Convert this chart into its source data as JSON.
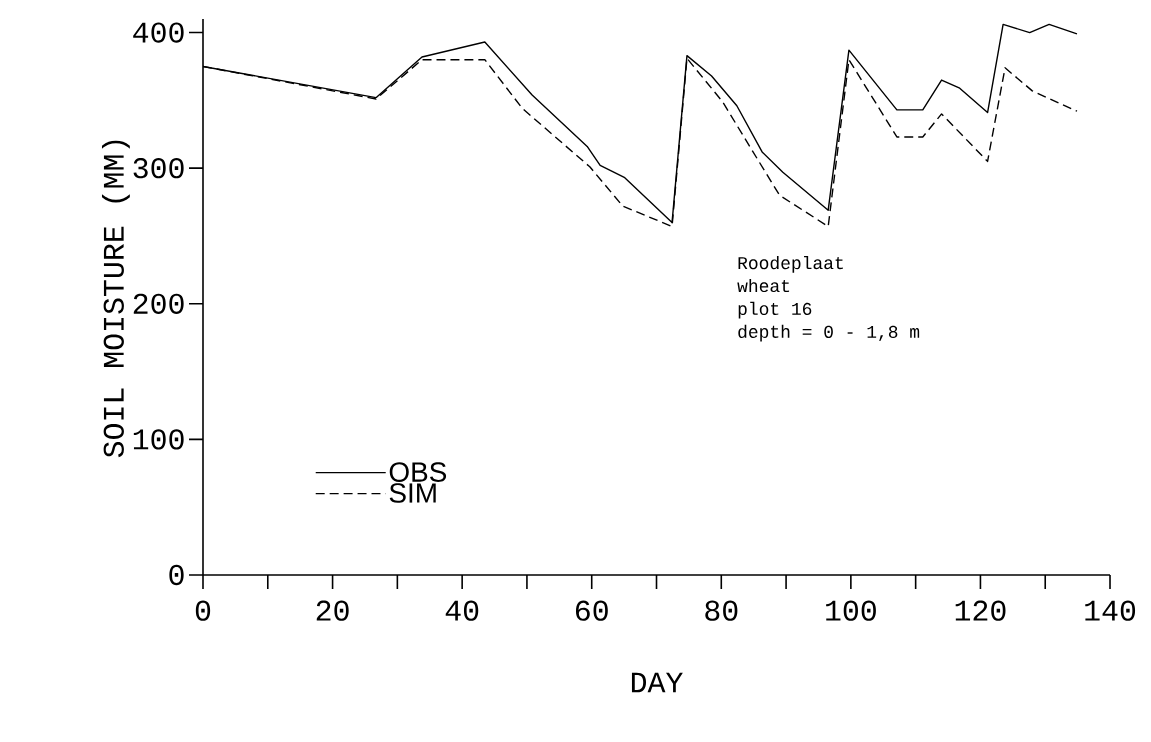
{
  "chart_data": {
    "type": "line",
    "xlabel": "DAY",
    "ylabel": "SOIL MOISTURE (MM)",
    "xlim": [
      0,
      140
    ],
    "ylim": [
      0,
      410
    ],
    "xticks": [
      0,
      {
        "value": 10,
        "label": null
      },
      20,
      {
        "value": 30,
        "label": null
      },
      40,
      {
        "value": 50,
        "label": null
      },
      60,
      {
        "value": 70,
        "label": null
      },
      80,
      {
        "value": 90,
        "label": null
      },
      100,
      {
        "value": 110,
        "label": null
      },
      120,
      {
        "value": 130,
        "label": null
      },
      140
    ],
    "yticks": [
      0,
      100,
      200,
      300,
      400
    ],
    "grid": false,
    "legend": "bottom left",
    "marker": "none",
    "annotations": [
      "Roodeplaat",
      "wheat",
      "plot 16",
      "depth = 0 - 1,8 m"
    ],
    "series": [
      {
        "name": "OBS",
        "color": "#000000",
        "line_style": "solid",
        "x": [
          0,
          26.7,
          33.8,
          43.5,
          50.8,
          59.3,
          61.3,
          65.1,
          72.4,
          74.7,
          78.5,
          82.4,
          86.3,
          89.5,
          96.5,
          99.7,
          107.1,
          111.1,
          114,
          116.8,
          121.1,
          123.5,
          127.6,
          130.6,
          134.9
        ],
        "values": [
          375,
          352,
          382,
          393,
          354,
          316,
          302,
          293,
          260,
          383,
          368,
          346,
          312,
          297,
          269,
          387,
          343,
          343,
          365,
          359,
          341,
          406,
          400,
          406,
          399
        ]
      },
      {
        "name": "SIM",
        "color": "#000000",
        "line_style": "dashed",
        "x": [
          0,
          26.7,
          33.8,
          43.5,
          49.3,
          59.7,
          64.8,
          72.4,
          74.7,
          80.2,
          84.9,
          89,
          96.5,
          99.7,
          107.1,
          111.1,
          114,
          121.1,
          123.8,
          128,
          134.9
        ],
        "values": [
          375,
          351,
          380,
          380,
          344,
          301,
          272,
          257,
          381,
          349,
          312,
          280,
          257,
          380,
          323,
          323,
          340,
          305,
          374,
          357,
          342
        ]
      }
    ]
  }
}
